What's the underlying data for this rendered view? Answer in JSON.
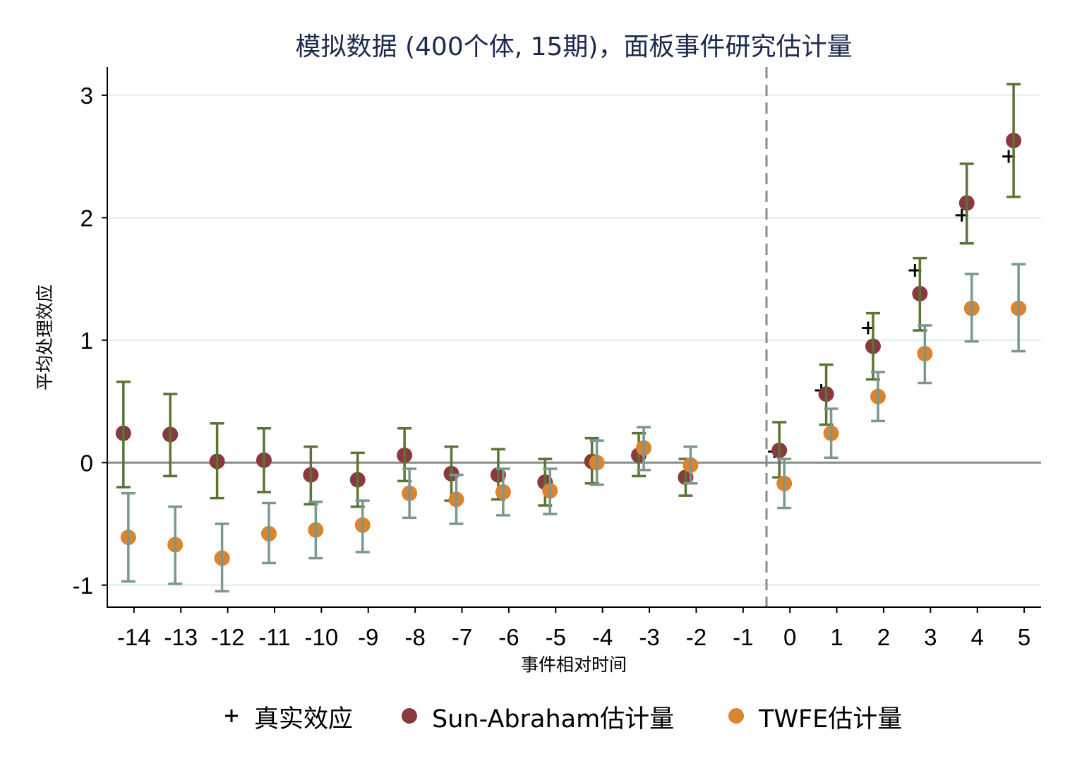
{
  "chart_data": {
    "type": "scatter",
    "title": "模拟数据 (400个体, 15期)，面板事件研究估计量",
    "xlabel": "事件相对时间",
    "ylabel": "平均处理效应",
    "xlim": [
      -14.57,
      5.36
    ],
    "ylim": [
      -1.18,
      3.23
    ],
    "xticks": [
      -14,
      -13,
      -12,
      -11,
      -10,
      -9,
      -8,
      -7,
      -6,
      -5,
      -4,
      -3,
      -2,
      -1,
      0,
      1,
      2,
      3,
      4,
      5
    ],
    "yticks": [
      -1,
      0,
      1,
      2,
      3
    ],
    "grid": true,
    "reference_lines": {
      "horizontal": 0,
      "vertical": -0.5
    },
    "legend_position": "bottom",
    "series": [
      {
        "name": "真实效应",
        "marker": "plus",
        "color": "#000000",
        "x": [
          0,
          1,
          2,
          3,
          4,
          5
        ],
        "y": [
          0.09,
          0.59,
          1.1,
          1.57,
          2.02,
          2.5
        ]
      },
      {
        "name": "Sun-Abraham估计量",
        "marker": "circle",
        "color": "#8a3a3e",
        "ci_color": "#5b7434",
        "x": [
          -14,
          -13,
          -12,
          -11,
          -10,
          -9,
          -8,
          -7,
          -6,
          -5,
          -4,
          -3,
          -2,
          0,
          1,
          2,
          3,
          4,
          5
        ],
        "y": [
          0.24,
          0.23,
          0.01,
          0.02,
          -0.1,
          -0.14,
          0.06,
          -0.09,
          -0.1,
          -0.16,
          0.01,
          0.06,
          -0.12,
          0.1,
          0.56,
          0.95,
          1.38,
          2.12,
          2.63
        ],
        "ci_high": [
          0.66,
          0.56,
          0.32,
          0.28,
          0.13,
          0.08,
          0.28,
          0.13,
          0.11,
          0.03,
          0.2,
          0.24,
          0.03,
          0.33,
          0.8,
          1.22,
          1.67,
          2.44,
          3.09
        ],
        "ci_low": [
          -0.2,
          -0.11,
          -0.29,
          -0.24,
          -0.34,
          -0.36,
          -0.15,
          -0.31,
          -0.3,
          -0.35,
          -0.17,
          -0.11,
          -0.27,
          -0.12,
          0.31,
          0.68,
          1.08,
          1.79,
          2.17
        ]
      },
      {
        "name": "TWFE估计量",
        "marker": "circle",
        "color": "#d9842e",
        "ci_color": "#7b978e",
        "x": [
          -14,
          -13,
          -12,
          -11,
          -10,
          -9,
          -8,
          -7,
          -6,
          -5,
          -4,
          -3,
          -2,
          0,
          1,
          2,
          3,
          4,
          5
        ],
        "y": [
          -0.61,
          -0.67,
          -0.78,
          -0.58,
          -0.55,
          -0.51,
          -0.25,
          -0.3,
          -0.24,
          -0.23,
          0.0,
          0.12,
          -0.02,
          -0.17,
          0.24,
          0.54,
          0.89,
          1.26,
          1.26
        ],
        "ci_high": [
          -0.25,
          -0.36,
          -0.5,
          -0.33,
          -0.32,
          -0.31,
          -0.05,
          -0.1,
          -0.05,
          -0.05,
          0.18,
          0.29,
          0.13,
          0.03,
          0.44,
          0.74,
          1.12,
          1.54,
          1.62
        ],
        "ci_low": [
          -0.97,
          -0.99,
          -1.05,
          -0.82,
          -0.78,
          -0.73,
          -0.45,
          -0.5,
          -0.43,
          -0.42,
          -0.18,
          -0.06,
          -0.17,
          -0.37,
          0.04,
          0.34,
          0.65,
          0.99,
          0.91
        ]
      }
    ]
  }
}
